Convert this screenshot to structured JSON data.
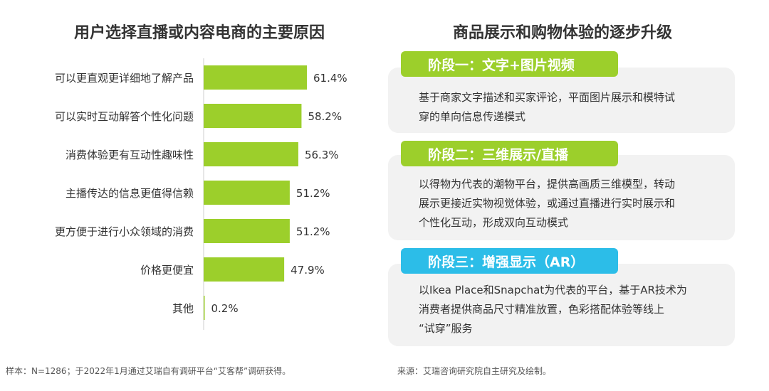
{
  "left": {
    "title": "用户选择直播或内容电商的主要原因"
  },
  "right": {
    "title": "商品展示和购物体验的逐步升级",
    "stages": [
      {
        "label": "阶段一：文字+图片视频",
        "color": "#9ccf2b",
        "lines": [
          "基于商家文字描述和买家评论，平面图片展示和模特试",
          "穿的单向信息传递模式"
        ]
      },
      {
        "label": "阶段二：三维展示/直播",
        "color": "#9ccf2b",
        "lines": [
          "以得物为代表的潮物平台，提供高画质三维模型，转动",
          "展示更接近实物视觉体验，或通过直播进行实时展示和",
          "个性化互动，形成双向互动模式"
        ]
      },
      {
        "label": "阶段三：增强显示（AR）",
        "color": "#2cbde8",
        "lines": [
          "以Ikea Place和Snapchat为代表的平台，基于AR技术为",
          "消费者提供商品尺寸精准放置，色彩搭配体验等线上",
          "“试穿”服务"
        ]
      }
    ]
  },
  "footer": {
    "sample": "样本：N=1286；于2022年1月通过艾瑞自有调研平台“艾客帮”调研获得。",
    "source": "来源：艾瑞咨询研究院自主研究及绘制。"
  },
  "chart_data": {
    "type": "bar",
    "orientation": "horizontal",
    "title": "用户选择直播或内容电商的主要原因",
    "categories": [
      "可以更直观更详细地了解产品",
      "可以实时互动解答个性化问题",
      "消费体验更有互动性趣味性",
      "主播传达的信息更值得信赖",
      "更方便于进行小众领域的消费",
      "价格更便宜",
      "其他"
    ],
    "values": [
      61.4,
      58.2,
      56.3,
      51.2,
      51.2,
      47.9,
      0.2
    ],
    "value_labels": [
      "61.4%",
      "58.2%",
      "56.3%",
      "51.2%",
      "51.2%",
      "47.9%",
      "0.2%"
    ],
    "unit": "%",
    "bar_color": "#9ccf2b",
    "xlim": [
      0,
      100
    ],
    "grid": false,
    "legend": "none"
  }
}
